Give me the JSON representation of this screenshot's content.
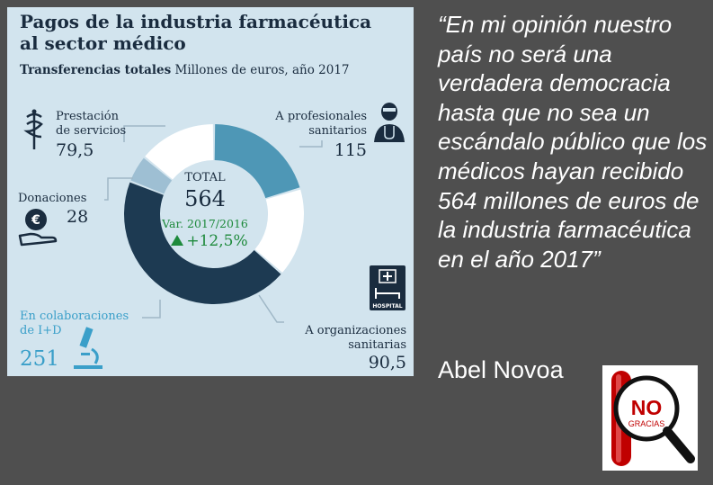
{
  "infographic": {
    "title_line1": "Pagos de la industria farmacéutica",
    "title_line2": "al sector médico",
    "subtitle_bold": "Transferencias totales",
    "subtitle_rest": " Millones de euros, año 2017",
    "labels": {
      "prestacion_line1": "Prestación",
      "prestacion_line2": "de servicios",
      "prestacion_value": "79,5",
      "profesionales_line1": "A profesionales",
      "profesionales_line2": "sanitarios",
      "profesionales_value": "115",
      "donaciones": "Donaciones",
      "donaciones_value": "28",
      "colaboraciones_line1": "En colaboraciones",
      "colaboraciones_line2": "de I+D",
      "colaboraciones_value": "251",
      "organizaciones_line1": "A organizaciones",
      "organizaciones_line2": "sanitarias",
      "organizaciones_value": "90,5"
    },
    "center": {
      "total_label": "TOTAL",
      "total_value": "564",
      "var_label": "Var. 2017/2016",
      "var_value": "+12,5%"
    },
    "hospital_label": "HOSPITAL",
    "euro_symbol": "€"
  },
  "chart_data": {
    "type": "pie",
    "title": "Pagos de la industria farmacéutica al sector médico",
    "subtitle": "Transferencias totales Millones de euros, año 2017",
    "categories": [
      "A profesionales sanitarios",
      "A organizaciones sanitarias",
      "En colaboraciones de I+D",
      "Donaciones",
      "Prestación de servicios"
    ],
    "values": [
      115,
      90.5,
      251,
      28,
      79.5
    ],
    "colors": [
      "#4e97b6",
      "#ffffff",
      "#1d3a52",
      "#9ebfd3",
      "#ffffff"
    ],
    "total": 564
  },
  "quote": {
    "text": "“En mi opinión nuestro país no será una verdadera democracia hasta que no sea un escándalo público que los médicos hayan recibido 564 millones de euros de la industria farmacéutica en el año 2017”",
    "author": "Abel Novoa"
  },
  "logo": {
    "no": "NO",
    "gracias": "GRACIAS"
  }
}
